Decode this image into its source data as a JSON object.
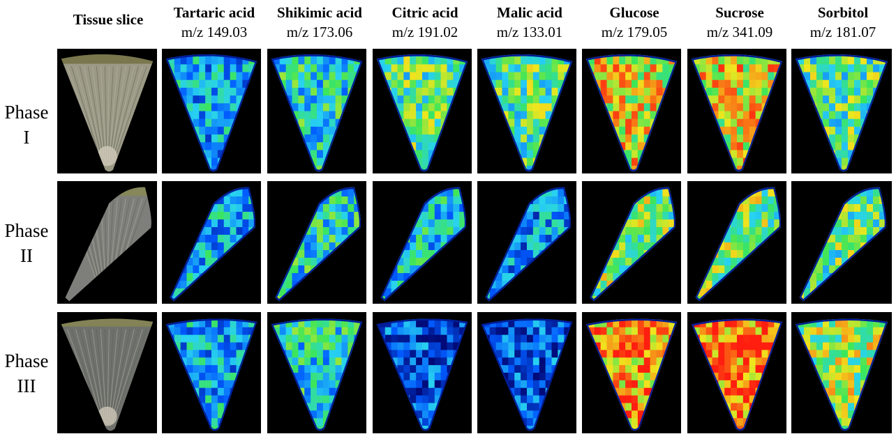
{
  "figure": {
    "tissue_header": "Tissue slice",
    "columns": [
      {
        "name": "Tartaric acid",
        "mz": "m/z 149.03"
      },
      {
        "name": "Shikimic acid",
        "mz": "m/z 173.06"
      },
      {
        "name": "Citric acid",
        "mz": "m/z 191.02"
      },
      {
        "name": "Malic acid",
        "mz": "m/z 133.01"
      },
      {
        "name": "Glucose",
        "mz": "m/z 179.05"
      },
      {
        "name": "Sucrose",
        "mz": "m/z 341.09"
      },
      {
        "name": "Sorbitol",
        "mz": "m/z 181.07"
      }
    ],
    "rows": [
      {
        "label_top": "Phase",
        "label_bottom": "I"
      },
      {
        "label_top": "Phase",
        "label_bottom": "II"
      },
      {
        "label_top": "Phase",
        "label_bottom": "III"
      }
    ],
    "colors": {
      "background": "#000000",
      "tissue_base": "#7d7d70",
      "low": "#0010a0",
      "mid_low": "#00a0ff",
      "mid": "#40e070",
      "mid_high": "#f0e020",
      "high": "#ff2010"
    },
    "intensity_levels": [
      [
        0.35,
        0.45,
        0.55,
        0.55,
        0.75,
        0.75,
        0.55
      ],
      [
        0.35,
        0.45,
        0.4,
        0.3,
        0.6,
        0.6,
        0.55
      ],
      [
        0.35,
        0.45,
        0.2,
        0.2,
        0.85,
        0.9,
        0.65
      ]
    ]
  }
}
